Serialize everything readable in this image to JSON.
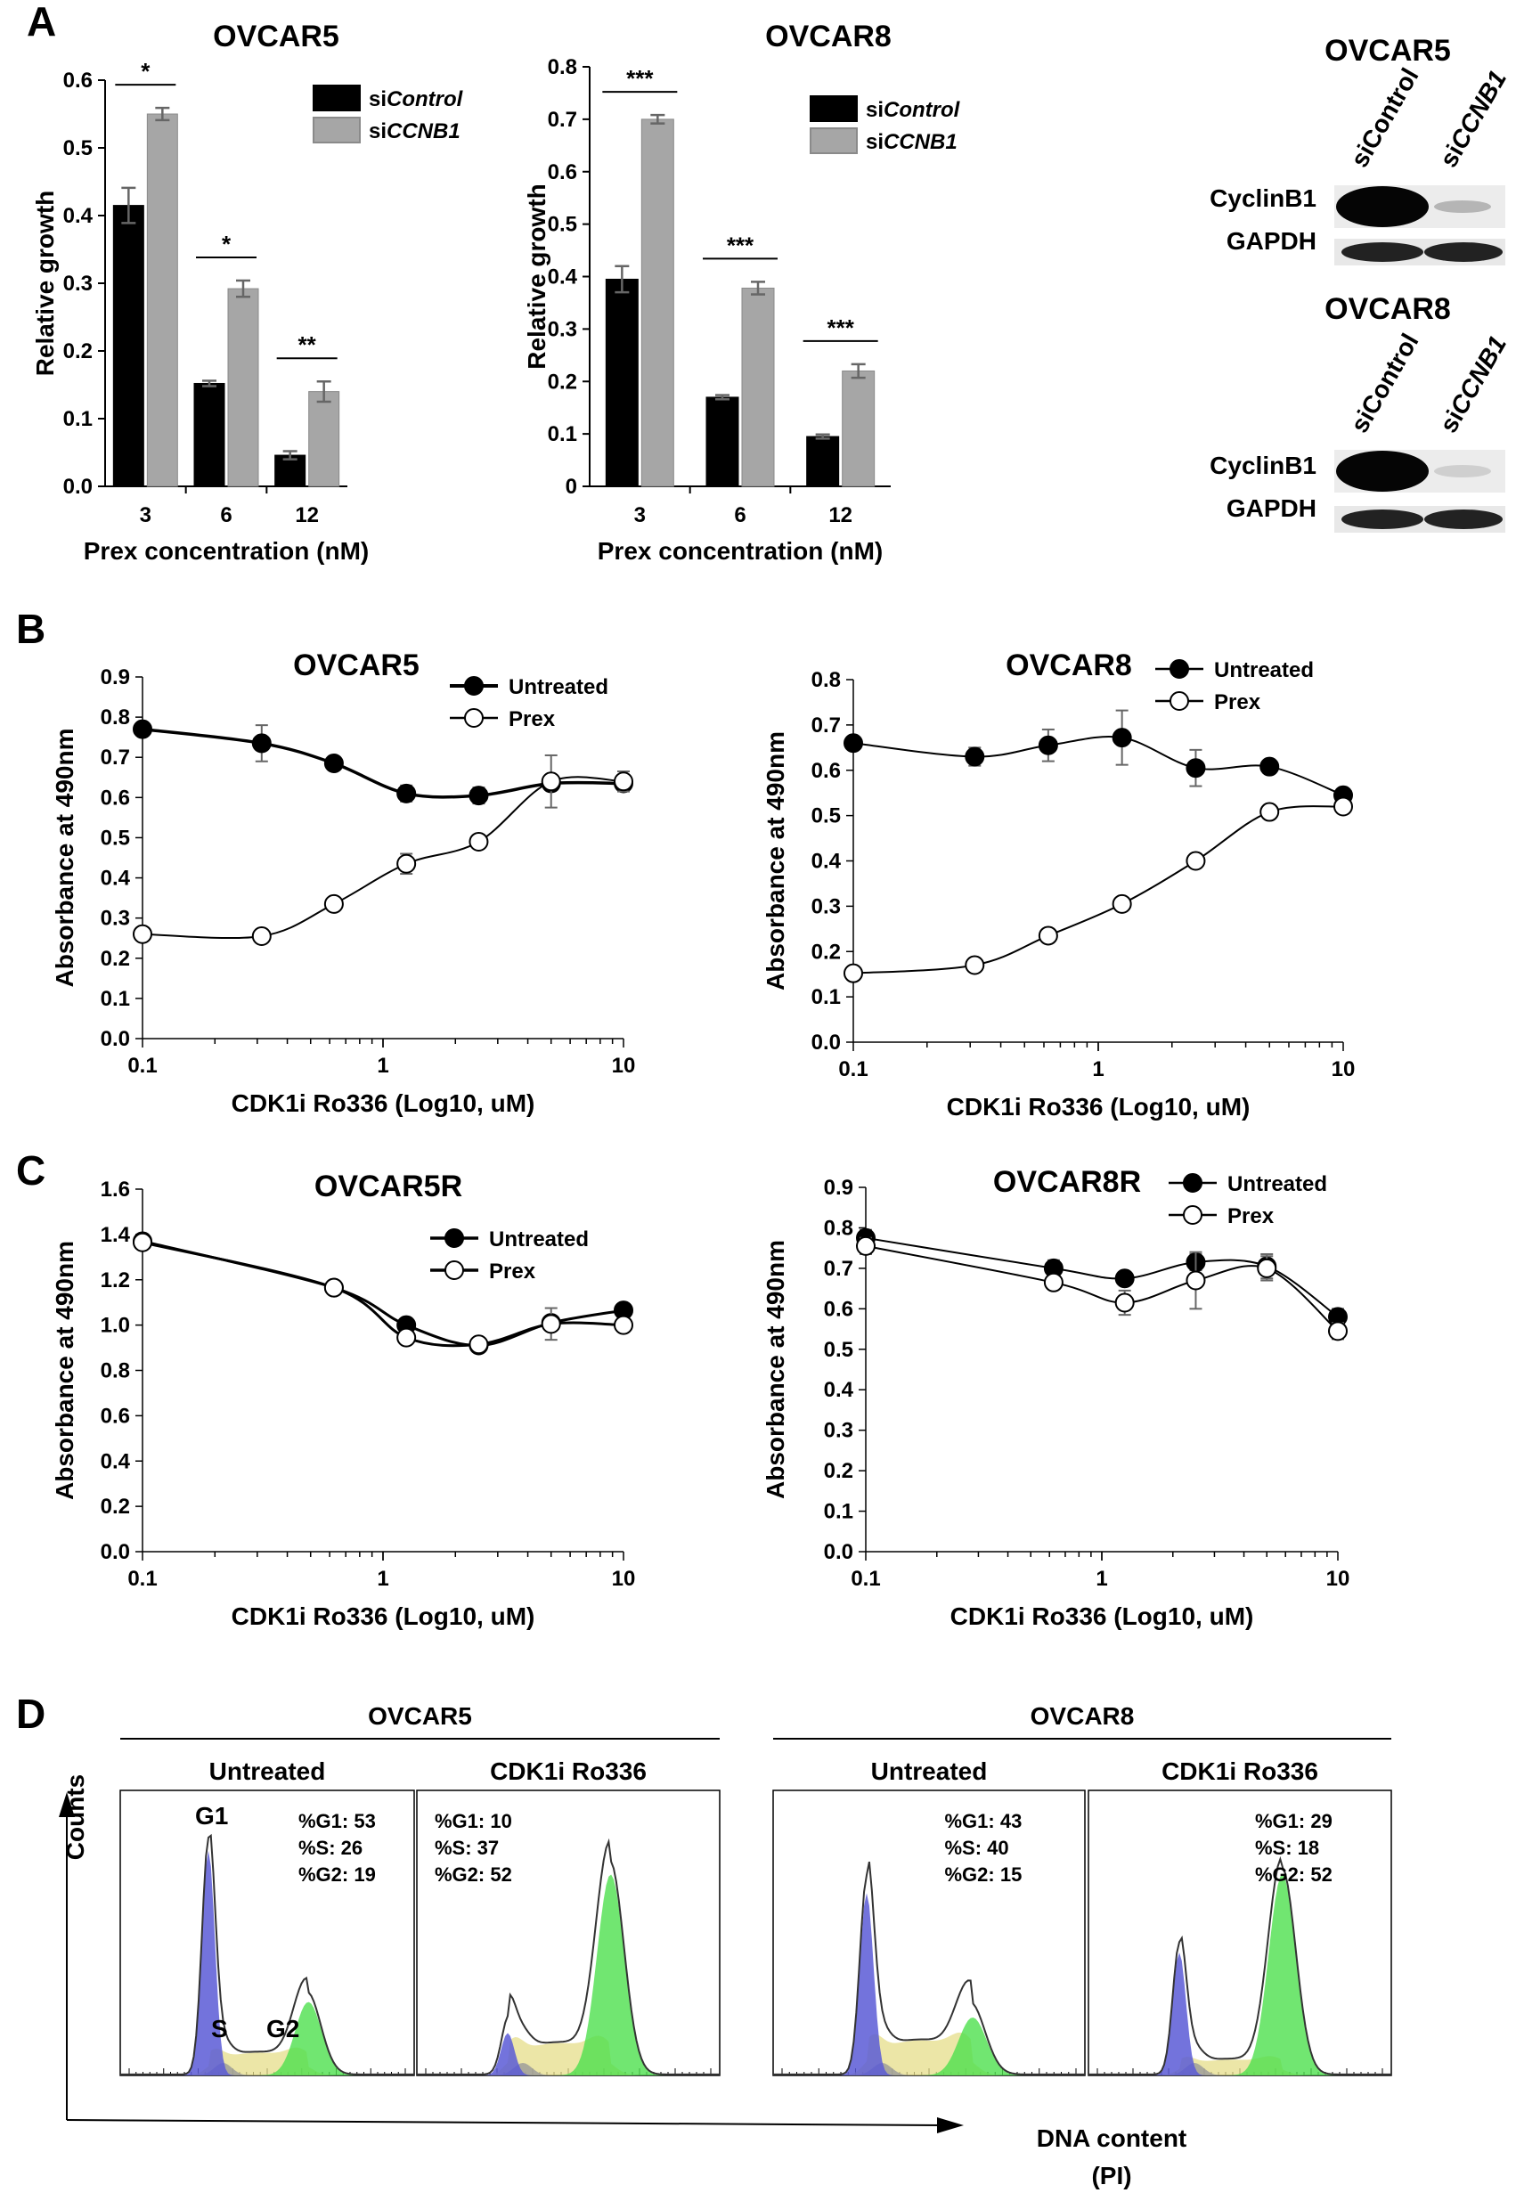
{
  "panels": {
    "A": "A",
    "B": "B",
    "C": "C",
    "D": "D"
  },
  "chart_data": [
    {
      "id": "A1",
      "type": "bar",
      "title": "OVCAR5",
      "xlabel": "Prex concentration (nM)",
      "ylabel": "Relative growth",
      "categories": [
        "3",
        "6",
        "12"
      ],
      "ylim": [
        0,
        0.6
      ],
      "yticks": [
        0,
        0.1,
        0.2,
        0.3,
        0.4,
        0.5,
        0.6
      ],
      "ytick_labels": [
        "0.0",
        "0.1",
        "0.2",
        "0.3",
        "0.4",
        "0.5",
        "0.6"
      ],
      "series": [
        {
          "name": "siControl",
          "name_plain": "si",
          "name_italic": "Control",
          "color": "#000000",
          "values": [
            0.415,
            0.152,
            0.046
          ],
          "errors": [
            0.026,
            0.004,
            0.006
          ]
        },
        {
          "name": "siCCNB1",
          "name_plain": "si",
          "name_italic": "CCNB1",
          "color": "#a6a6a6",
          "values": [
            0.55,
            0.292,
            0.14
          ],
          "errors": [
            0.009,
            0.012,
            0.015
          ]
        }
      ],
      "significance": [
        "*",
        "*",
        "**"
      ]
    },
    {
      "id": "A2",
      "type": "bar",
      "title": "OVCAR8",
      "xlabel": "Prex concentration (nM)",
      "ylabel": "Relative growth",
      "categories": [
        "3",
        "6",
        "12"
      ],
      "ylim": [
        0,
        0.8
      ],
      "yticks": [
        0,
        0.1,
        0.2,
        0.3,
        0.4,
        0.5,
        0.6,
        0.7,
        0.8
      ],
      "ytick_labels": [
        "0",
        "0.1",
        "0.2",
        "0.3",
        "0.4",
        "0.5",
        "0.6",
        "0.7",
        "0.8"
      ],
      "series": [
        {
          "name": "siControl",
          "name_plain": "si",
          "name_italic": "Control",
          "color": "#000000",
          "values": [
            0.395,
            0.17,
            0.095
          ],
          "errors": [
            0.025,
            0.004,
            0.004
          ]
        },
        {
          "name": "siCCNB1",
          "name_plain": "si",
          "name_italic": "CCNB1",
          "color": "#a6a6a6",
          "values": [
            0.7,
            0.378,
            0.22
          ],
          "errors": [
            0.008,
            0.012,
            0.013
          ]
        }
      ],
      "significance": [
        "***",
        "***",
        "***"
      ]
    },
    {
      "id": "B1",
      "type": "line",
      "title": "OVCAR5",
      "xlabel": "CDK1i Ro336 (Log10, uM)",
      "ylabel": "Absorbance at 490nm",
      "xscale": "log",
      "xlim": [
        0.1,
        10
      ],
      "xticks": [
        0.1,
        1,
        10
      ],
      "xtick_labels": [
        "0.1",
        "1",
        "10"
      ],
      "ylim": [
        0,
        0.9
      ],
      "yticks": [
        0,
        0.1,
        0.2,
        0.3,
        0.4,
        0.5,
        0.6,
        0.7,
        0.8,
        0.9
      ],
      "ytick_labels": [
        "0.0",
        "0.1",
        "0.2",
        "0.3",
        "0.4",
        "0.5",
        "0.6",
        "0.7",
        "0.8",
        "0.9"
      ],
      "x": [
        0.1,
        0.313,
        0.625,
        1.25,
        2.5,
        5,
        10
      ],
      "series": [
        {
          "name": "Untreated",
          "marker": "filled",
          "values": [
            0.77,
            0.735,
            0.685,
            0.61,
            0.605,
            0.635,
            0.635
          ],
          "errors": [
            0.01,
            0.045,
            0.01,
            0.02,
            0.02,
            0.01,
            0.02
          ]
        },
        {
          "name": "Prex",
          "marker": "open",
          "values": [
            0.26,
            0.255,
            0.335,
            0.435,
            0.49,
            0.64,
            0.64
          ],
          "errors": [
            0.01,
            0.01,
            0.01,
            0.025,
            0.01,
            0.065,
            0.025
          ]
        }
      ]
    },
    {
      "id": "B2",
      "type": "line",
      "title": "OVCAR8",
      "xlabel": "CDK1i Ro336 (Log10, uM)",
      "ylabel": "Absorbance at 490nm",
      "xscale": "log",
      "xlim": [
        0.1,
        10
      ],
      "xticks": [
        0.1,
        1,
        10
      ],
      "xtick_labels": [
        "0.1",
        "1",
        "10"
      ],
      "ylim": [
        0,
        0.8
      ],
      "yticks": [
        0,
        0.1,
        0.2,
        0.3,
        0.4,
        0.5,
        0.6,
        0.7,
        0.8
      ],
      "ytick_labels": [
        "0.0",
        "0.1",
        "0.2",
        "0.3",
        "0.4",
        "0.5",
        "0.6",
        "0.7",
        "0.8"
      ],
      "x": [
        0.1,
        0.313,
        0.625,
        1.25,
        2.5,
        5,
        10
      ],
      "series": [
        {
          "name": "Untreated",
          "marker": "filled",
          "values": [
            0.66,
            0.63,
            0.655,
            0.672,
            0.605,
            0.608,
            0.545
          ],
          "errors": [
            0.01,
            0.02,
            0.035,
            0.06,
            0.04,
            0.01,
            0.01
          ]
        },
        {
          "name": "Prex",
          "marker": "open",
          "values": [
            0.152,
            0.17,
            0.235,
            0.305,
            0.4,
            0.508,
            0.52
          ],
          "errors": [
            0.01,
            0.01,
            0.01,
            0.01,
            0.01,
            0.01,
            0.01
          ]
        }
      ]
    },
    {
      "id": "C1",
      "type": "line",
      "title": "OVCAR5R",
      "xlabel": "CDK1i Ro336 (Log10, uM)",
      "ylabel": "Absorbance at 490nm",
      "xscale": "log",
      "xlim": [
        0.1,
        10
      ],
      "xticks": [
        0.1,
        1,
        10
      ],
      "xtick_labels": [
        "0.1",
        "1",
        "10"
      ],
      "ylim": [
        0,
        1.6
      ],
      "yticks": [
        0,
        0.2,
        0.4,
        0.6,
        0.8,
        1.0,
        1.2,
        1.4,
        1.6
      ],
      "ytick_labels": [
        "0.0",
        "0.2",
        "0.4",
        "0.6",
        "0.8",
        "1.0",
        "1.2",
        "1.4",
        "1.6"
      ],
      "x": [
        0.1,
        0.625,
        1.25,
        2.5,
        5,
        10
      ],
      "series": [
        {
          "name": "Untreated",
          "marker": "filled",
          "values": [
            1.37,
            1.165,
            1.0,
            0.91,
            1.01,
            1.065
          ],
          "errors": [
            0.01,
            0.01,
            0.01,
            0.02,
            0.02,
            0.01
          ]
        },
        {
          "name": "Prex",
          "marker": "open",
          "values": [
            1.365,
            1.165,
            0.945,
            0.915,
            1.005,
            1.0
          ],
          "errors": [
            0.01,
            0.01,
            0.01,
            0.02,
            0.07,
            0.01
          ]
        }
      ]
    },
    {
      "id": "C2",
      "type": "line",
      "title": "OVCAR8R",
      "xlabel": "CDK1i Ro336 (Log10, uM)",
      "ylabel": "Absorbance at 490nm",
      "xscale": "log",
      "xlim": [
        0.1,
        10
      ],
      "xticks": [
        0.1,
        1,
        10
      ],
      "xtick_labels": [
        "0.1",
        "1",
        "10"
      ],
      "ylim": [
        0,
        0.9
      ],
      "yticks": [
        0,
        0.1,
        0.2,
        0.3,
        0.4,
        0.5,
        0.6,
        0.7,
        0.8,
        0.9
      ],
      "ytick_labels": [
        "0.0",
        "0.1",
        "0.2",
        "0.3",
        "0.4",
        "0.5",
        "0.6",
        "0.7",
        "0.8",
        "0.9"
      ],
      "x": [
        0.1,
        0.625,
        1.25,
        2.5,
        5,
        10
      ],
      "series": [
        {
          "name": "Untreated",
          "marker": "filled",
          "values": [
            0.775,
            0.7,
            0.675,
            0.715,
            0.705,
            0.58
          ],
          "errors": [
            0.02,
            0.02,
            0.01,
            0.02,
            0.03,
            0.02
          ]
        },
        {
          "name": "Prex",
          "marker": "open",
          "values": [
            0.755,
            0.665,
            0.615,
            0.67,
            0.7,
            0.545
          ],
          "errors": [
            0.02,
            0.01,
            0.03,
            0.07,
            0.03,
            0.02
          ]
        }
      ]
    }
  ],
  "western": {
    "blots": [
      {
        "cell_line": "OVCAR5",
        "lane1": "siControl",
        "lane2_plain": "si",
        "lane2_italic": "CCNB1",
        "rows": [
          "CyclinB1",
          "GAPDH"
        ]
      },
      {
        "cell_line": "OVCAR8",
        "lane1": "siControl",
        "lane2_plain": "si",
        "lane2_italic": "CCNB1",
        "rows": [
          "CyclinB1",
          "GAPDH"
        ]
      }
    ]
  },
  "flow": {
    "ylabel": "Counts",
    "xlabel_line1": "DNA content",
    "xlabel_line2": "(PI)",
    "groups": [
      {
        "cell_line": "OVCAR5",
        "conditions": [
          {
            "label": "Untreated",
            "stats": [
              "%G1: 53",
              "%S: 26",
              "%G2: 19"
            ],
            "g1": 0.53,
            "s": 0.26,
            "g2": 0.19
          },
          {
            "label": "CDK1i Ro336",
            "stats": [
              "%G1: 10",
              "%S: 37",
              "%G2: 52"
            ],
            "g1": 0.1,
            "s": 0.37,
            "g2": 0.52
          }
        ]
      },
      {
        "cell_line": "OVCAR8",
        "conditions": [
          {
            "label": "Untreated",
            "stats": [
              "%G1: 43",
              "%S: 40",
              "%G2: 15"
            ],
            "g1": 0.43,
            "s": 0.4,
            "g2": 0.15
          },
          {
            "label": "CDK1i Ro336",
            "stats": [
              "%G1: 29",
              "%S: 18",
              "%G2: 52"
            ],
            "g1": 0.29,
            "s": 0.18,
            "g2": 0.52
          }
        ]
      }
    ],
    "phase_labels": {
      "g1": "G1",
      "s": "S",
      "g2": "G2"
    },
    "colors": {
      "g1": "#5a5ad6",
      "s": "#e6dd8a",
      "g2": "#4ee04e",
      "dead": "#9a9a9a"
    }
  }
}
